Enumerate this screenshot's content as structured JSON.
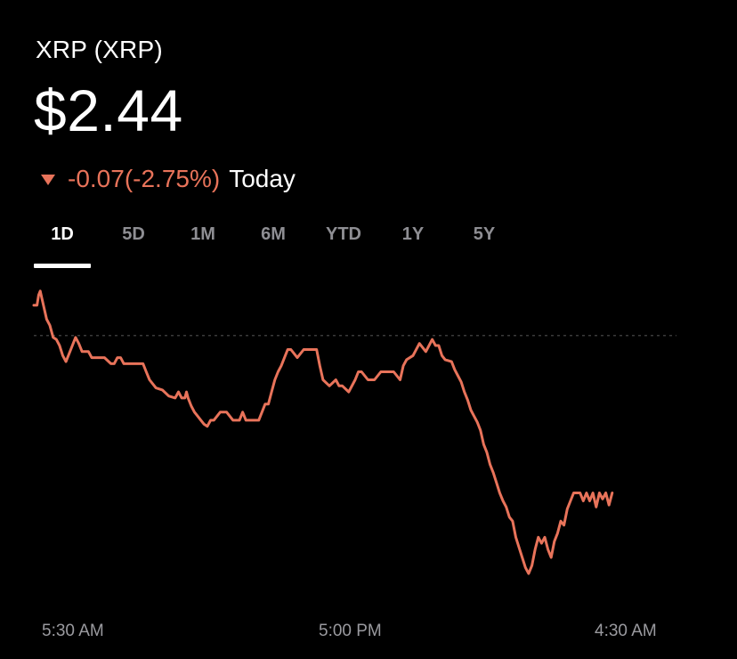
{
  "asset": {
    "name": "XRP (XRP)",
    "price": "$2.44",
    "change": "-0.07(-2.75%)",
    "period": "Today",
    "direction_icon": "triangle-down-icon"
  },
  "tabs": [
    {
      "label": "1D",
      "active": true
    },
    {
      "label": "5D",
      "active": false
    },
    {
      "label": "1M",
      "active": false
    },
    {
      "label": "6M",
      "active": false
    },
    {
      "label": "YTD",
      "active": false
    },
    {
      "label": "1Y",
      "active": false
    },
    {
      "label": "5Y",
      "active": false
    }
  ],
  "colors": {
    "background": "#000000",
    "line": "#e8735a",
    "text": "#ffffff",
    "muted": "#8e8e93",
    "reference_line": "#3a3a3a"
  },
  "chart_data": {
    "type": "line",
    "x_tick_labels": [
      "5:30 AM",
      "5:00 PM",
      "4:30 AM"
    ],
    "x_range": [
      0,
      200
    ],
    "x_tick_positions": [
      0,
      86,
      173
    ],
    "y_range": [
      2.385,
      2.535
    ],
    "reference_value": 2.51,
    "grid": false,
    "legend": "none",
    "series": [
      {
        "x": [
          0,
          1,
          1.5,
          2,
          3,
          4,
          5,
          6,
          7,
          8,
          9,
          10,
          11,
          12,
          13,
          14,
          15,
          16,
          17,
          18,
          20,
          22,
          24,
          25,
          26,
          27,
          28,
          30,
          31,
          32,
          34,
          35,
          36,
          38,
          40,
          42,
          44,
          45,
          46,
          47,
          47.5,
          48,
          49,
          50,
          51,
          52,
          53,
          54,
          55,
          56,
          58,
          60,
          62,
          64,
          65,
          66,
          67,
          68,
          70,
          72,
          73,
          74,
          75,
          76,
          77,
          78,
          79,
          80,
          82,
          84,
          86,
          88,
          89,
          90,
          92,
          94,
          95,
          96,
          98,
          100,
          101,
          102,
          104,
          106,
          108,
          110,
          112,
          114,
          115,
          116,
          118,
          120,
          122,
          124,
          125,
          126,
          127,
          128,
          130,
          131,
          132,
          133,
          134,
          135,
          136,
          137,
          138,
          139,
          140,
          141,
          142,
          143,
          144,
          145,
          146,
          147,
          148,
          149,
          150,
          151,
          152,
          153,
          154,
          155,
          156,
          157,
          158,
          159,
          160,
          161,
          162,
          163,
          164,
          165,
          166,
          167,
          168,
          169,
          170,
          171,
          172,
          173,
          174,
          175,
          176,
          177,
          178,
          179,
          180
        ],
        "y": [
          2.525,
          2.525,
          2.53,
          2.532,
          2.525,
          2.518,
          2.515,
          2.509,
          2.508,
          2.505,
          2.5,
          2.497,
          2.501,
          2.505,
          2.509,
          2.506,
          2.502,
          2.502,
          2.502,
          2.499,
          2.499,
          2.499,
          2.496,
          2.496,
          2.499,
          2.499,
          2.496,
          2.496,
          2.496,
          2.496,
          2.496,
          2.492,
          2.488,
          2.484,
          2.483,
          2.48,
          2.479,
          2.482,
          2.479,
          2.479,
          2.482,
          2.479,
          2.475,
          2.472,
          2.47,
          2.468,
          2.466,
          2.465,
          2.468,
          2.468,
          2.472,
          2.472,
          2.468,
          2.468,
          2.472,
          2.468,
          2.468,
          2.468,
          2.468,
          2.476,
          2.476,
          2.482,
          2.488,
          2.492,
          2.495,
          2.499,
          2.503,
          2.503,
          2.499,
          2.503,
          2.503,
          2.503,
          2.495,
          2.488,
          2.485,
          2.488,
          2.485,
          2.485,
          2.482,
          2.488,
          2.492,
          2.492,
          2.488,
          2.488,
          2.492,
          2.492,
          2.492,
          2.488,
          2.495,
          2.498,
          2.5,
          2.506,
          2.502,
          2.508,
          2.505,
          2.505,
          2.5,
          2.498,
          2.497,
          2.493,
          2.49,
          2.487,
          2.482,
          2.478,
          2.473,
          2.47,
          2.467,
          2.463,
          2.456,
          2.452,
          2.446,
          2.442,
          2.437,
          2.432,
          2.428,
          2.425,
          2.42,
          2.418,
          2.41,
          2.405,
          2.4,
          2.395,
          2.392,
          2.396,
          2.404,
          2.41,
          2.407,
          2.41,
          2.404,
          2.4,
          2.408,
          2.412,
          2.418,
          2.416,
          2.424,
          2.428,
          2.432,
          2.432,
          2.432,
          2.428,
          2.432,
          2.428,
          2.432,
          2.425,
          2.432,
          2.429,
          2.432,
          2.426,
          2.432
        ]
      }
    ]
  }
}
